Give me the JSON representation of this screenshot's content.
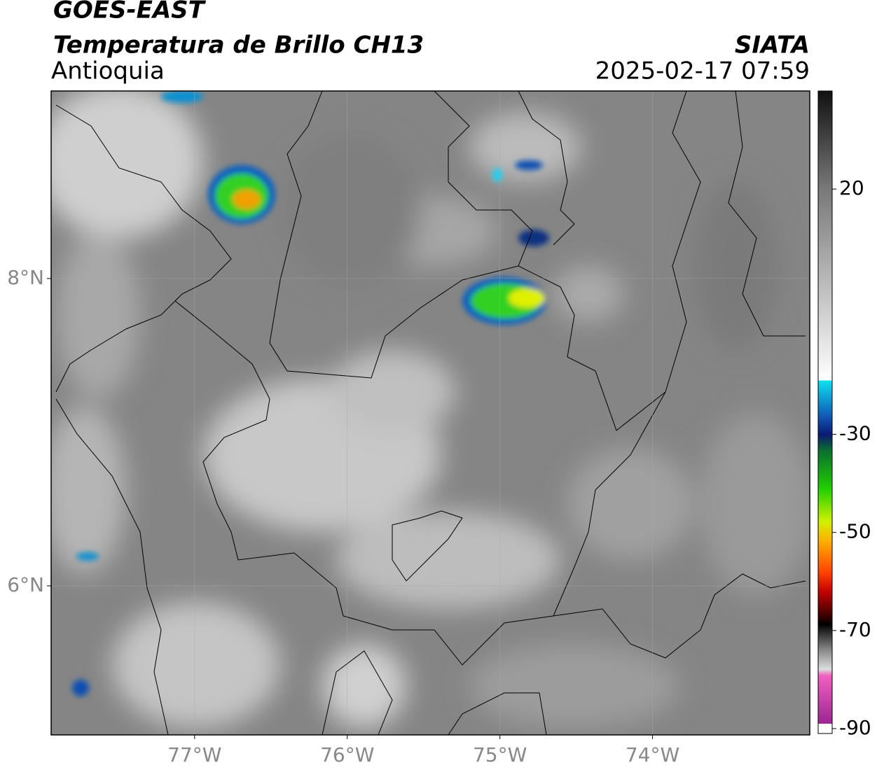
{
  "header": {
    "line1": "GOES-EAST",
    "line2": "Temperatura de Brillo CH13",
    "region": "Antioquia",
    "source": "SIATA",
    "datetime": "2025-02-17 07:59"
  },
  "map": {
    "xlim": [
      -77.94,
      -72.97
    ],
    "ylim": [
      5.03,
      9.22
    ],
    "xticks": [
      {
        "value": -77,
        "label": "77°W"
      },
      {
        "value": -76,
        "label": "76°W"
      },
      {
        "value": -75,
        "label": "75°W"
      },
      {
        "value": -74,
        "label": "74°W"
      }
    ],
    "yticks": [
      {
        "value": 8,
        "label": "8°N"
      },
      {
        "value": 6,
        "label": "6°N"
      }
    ],
    "grid": true
  },
  "colorbar": {
    "lim": [
      -91,
      40
    ],
    "ticks": [
      20,
      -30,
      -50,
      -70,
      -90
    ]
  }
}
